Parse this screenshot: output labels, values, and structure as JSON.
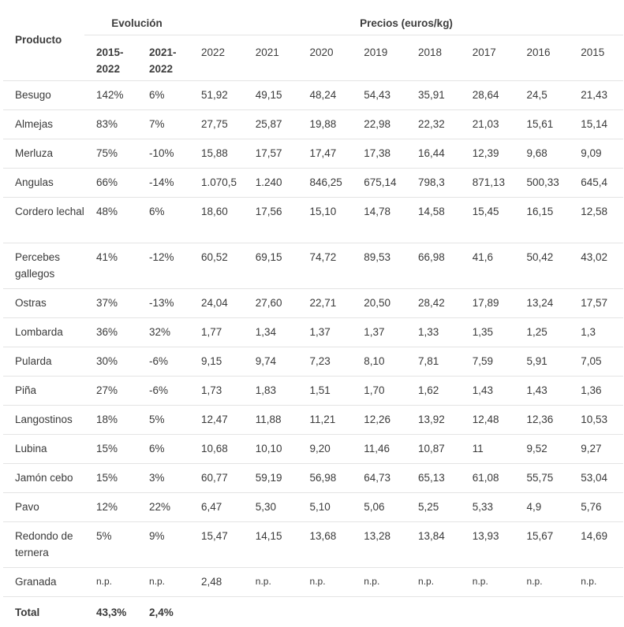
{
  "table": {
    "headers": {
      "product": "Producto",
      "evolution_group": "Evolución",
      "prices_group": "Precios (euros/kg)",
      "evolution_cols": [
        "2015-\n2022",
        "2021-\n2022"
      ],
      "year_cols": [
        "2022",
        "2021",
        "2020",
        "2019",
        "2018",
        "2017",
        "2016",
        "2015"
      ]
    },
    "rows": [
      {
        "product": "Besugo",
        "ev1": "142%",
        "ev2": "6%",
        "prices": [
          "51,92",
          "49,15",
          "48,24",
          "54,43",
          "35,91",
          "28,64",
          "24,5",
          "21,43"
        ]
      },
      {
        "product": "Almejas",
        "ev1": "83%",
        "ev2": "7%",
        "prices": [
          "27,75",
          "25,87",
          "19,88",
          "22,98",
          "22,32",
          "21,03",
          "15,61",
          "15,14"
        ]
      },
      {
        "product": "Merluza",
        "ev1": "75%",
        "ev2": "-10%",
        "prices": [
          "15,88",
          "17,57",
          "17,47",
          "17,38",
          "16,44",
          "12,39",
          "9,68",
          "9,09"
        ]
      },
      {
        "product": "Angulas",
        "ev1": "66%",
        "ev2": "-14%",
        "prices": [
          "1.070,5",
          "1.240",
          "846,25",
          "675,14",
          "798,3",
          "871,13",
          "500,33",
          "645,4"
        ]
      },
      {
        "product": "Cordero lechal",
        "ev1": "48%",
        "ev2": "6%",
        "prices": [
          "18,60",
          "17,56",
          "15,10",
          "14,78",
          "14,58",
          "15,45",
          "16,15",
          "12,58"
        ]
      },
      {
        "product": "Percebes gallegos",
        "ev1": "41%",
        "ev2": "-12%",
        "prices": [
          "60,52",
          "69,15",
          "74,72",
          "89,53",
          "66,98",
          "41,6",
          "50,42",
          "43,02"
        ]
      },
      {
        "product": "Ostras",
        "ev1": "37%",
        "ev2": "-13%",
        "prices": [
          "24,04",
          "27,60",
          "22,71",
          "20,50",
          "28,42",
          "17,89",
          "13,24",
          "17,57"
        ]
      },
      {
        "product": "Lombarda",
        "ev1": "36%",
        "ev2": "32%",
        "prices": [
          "1,77",
          "1,34",
          "1,37",
          "1,37",
          "1,33",
          "1,35",
          "1,25",
          "1,3"
        ]
      },
      {
        "product": "Pularda",
        "ev1": "30%",
        "ev2": "-6%",
        "prices": [
          "9,15",
          "9,74",
          "7,23",
          "8,10",
          "7,81",
          "7,59",
          "5,91",
          "7,05"
        ]
      },
      {
        "product": "Piña",
        "ev1": "27%",
        "ev2": "-6%",
        "prices": [
          "1,73",
          "1,83",
          "1,51",
          "1,70",
          "1,62",
          "1,43",
          "1,43",
          "1,36"
        ]
      },
      {
        "product": "Langostinos",
        "ev1": "18%",
        "ev2": "5%",
        "prices": [
          "12,47",
          "11,88",
          "11,21",
          "12,26",
          "13,92",
          "12,48",
          "12,36",
          "10,53"
        ]
      },
      {
        "product": "Lubina",
        "ev1": "15%",
        "ev2": "6%",
        "prices": [
          "10,68",
          "10,10",
          "9,20",
          "11,46",
          "10,87",
          "11",
          "9,52",
          "9,27"
        ]
      },
      {
        "product": "Jamón cebo",
        "ev1": "15%",
        "ev2": "3%",
        "prices": [
          "60,77",
          "59,19",
          "56,98",
          "64,73",
          "65,13",
          "61,08",
          "55,75",
          "53,04"
        ]
      },
      {
        "product": "Pavo",
        "ev1": "12%",
        "ev2": "22%",
        "prices": [
          "6,47",
          "5,30",
          "5,10",
          "5,06",
          "5,25",
          "5,33",
          "4,9",
          "5,76"
        ]
      },
      {
        "product": "Redondo de ternera",
        "ev1": "5%",
        "ev2": "9%",
        "prices": [
          "15,47",
          "14,15",
          "13,68",
          "13,28",
          "13,84",
          "13,93",
          "15,67",
          "14,69"
        ]
      },
      {
        "product": "Granada",
        "ev1": "n.p.",
        "ev2": "n.p.",
        "prices": [
          "2,48",
          "n.p.",
          "n.p.",
          "n.p.",
          "n.p.",
          "n.p.",
          "n.p.",
          "n.p."
        ]
      }
    ],
    "total": {
      "label": "Total",
      "ev1": "43,3%",
      "ev2": "2,4%"
    }
  }
}
